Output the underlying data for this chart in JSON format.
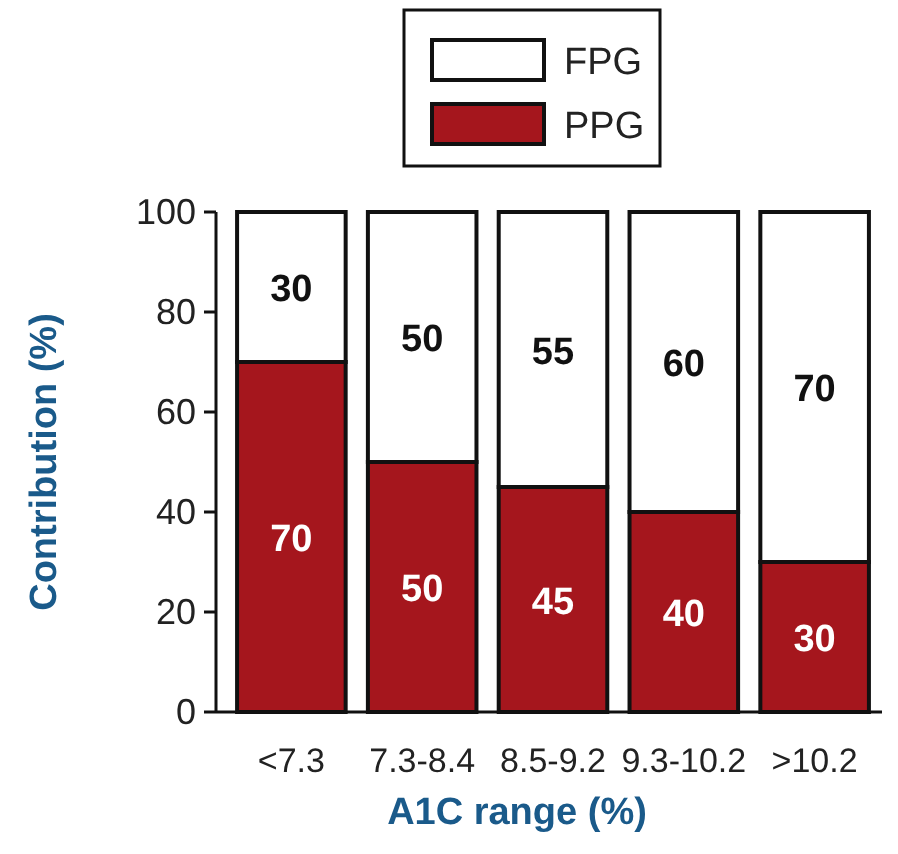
{
  "chart_data": {
    "type": "bar",
    "stacked": true,
    "xlabel": "A1C range (%)",
    "ylabel": "Contribution (%)",
    "categories": [
      "<7.3",
      "7.3-8.4",
      "8.5-9.2",
      "9.3-10.2",
      ">10.2"
    ],
    "series": [
      {
        "name": "PPG",
        "color": "#a5161d",
        "values": [
          70,
          50,
          45,
          40,
          30
        ]
      },
      {
        "name": "FPG",
        "color": "#ffffff",
        "values": [
          30,
          50,
          55,
          60,
          70
        ]
      }
    ],
    "ylim": [
      0,
      100
    ],
    "yticks": [
      0,
      20,
      40,
      60,
      80,
      100
    ],
    "data_labels": true,
    "legend": "top",
    "grid": false
  }
}
